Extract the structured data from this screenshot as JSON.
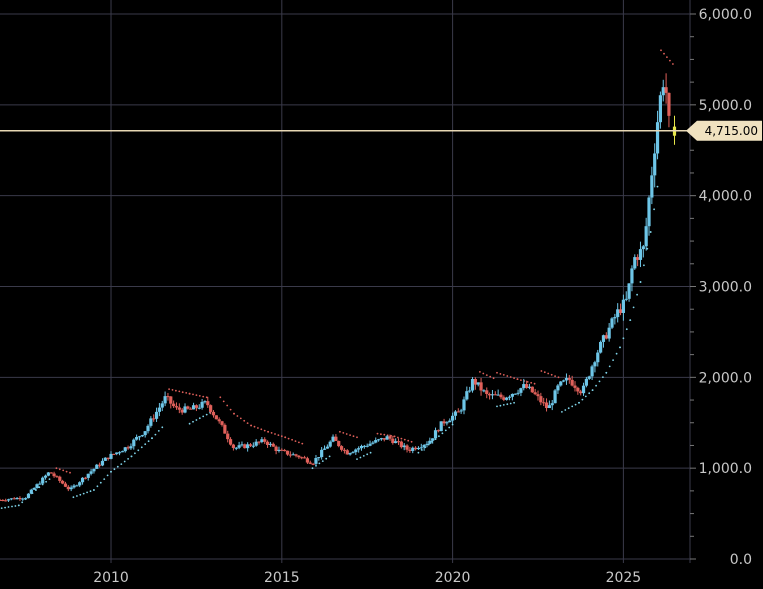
{
  "colors": {
    "background": "#000000",
    "grid": "#3a3a4a",
    "axis_text": "#c8c8c8",
    "up_candle": "#6ec6e8",
    "down_candle": "#e0605a",
    "stop_below": "#7fd3e8",
    "stop_above": "#e0605a",
    "price_line": "#e8d8b4",
    "price_tag_bg": "#f0e2c0",
    "price_tag_text": "#000000",
    "last_candle": "#e6e64a"
  },
  "chart_data": {
    "type": "candlestick",
    "title": "",
    "xlabel": "",
    "ylabel": "",
    "grid": true,
    "ylim": [
      0,
      6000
    ],
    "xlim": [
      2006.75,
      2026.95
    ],
    "x_ticks": [
      2010,
      2015,
      2020,
      2025
    ],
    "x_tick_labels": [
      "2010",
      "2015",
      "2020",
      "2025"
    ],
    "y_ticks": [
      0,
      1000,
      2000,
      3000,
      4000,
      5000,
      6000
    ],
    "y_tick_labels": [
      "0.0",
      "1,000.0",
      "2,000.0",
      "3,000.0",
      "4,000.0",
      "5,000.0",
      "6,000.0"
    ],
    "y_axis_side": "right",
    "current_price": 4715,
    "current_price_label": "4,715.00",
    "price_path": [
      [
        2006.75,
        650
      ],
      [
        2007.5,
        680
      ],
      [
        2008.2,
        960
      ],
      [
        2008.8,
        760
      ],
      [
        2009.3,
        930
      ],
      [
        2009.9,
        1120
      ],
      [
        2010.5,
        1240
      ],
      [
        2011.0,
        1420
      ],
      [
        2011.6,
        1780
      ],
      [
        2011.9,
        1650
      ],
      [
        2012.3,
        1640
      ],
      [
        2012.8,
        1720
      ],
      [
        2013.3,
        1420
      ],
      [
        2013.6,
        1220
      ],
      [
        2014.0,
        1250
      ],
      [
        2014.5,
        1300
      ],
      [
        2014.9,
        1190
      ],
      [
        2015.5,
        1130
      ],
      [
        2015.9,
        1060
      ],
      [
        2016.5,
        1320
      ],
      [
        2016.9,
        1170
      ],
      [
        2017.5,
        1260
      ],
      [
        2018.1,
        1340
      ],
      [
        2018.7,
        1200
      ],
      [
        2019.3,
        1290
      ],
      [
        2019.7,
        1500
      ],
      [
        2020.2,
        1620
      ],
      [
        2020.6,
        1970
      ],
      [
        2021.0,
        1800
      ],
      [
        2021.5,
        1780
      ],
      [
        2022.1,
        1900
      ],
      [
        2022.3,
        1850
      ],
      [
        2022.8,
        1650
      ],
      [
        2023.1,
        1900
      ],
      [
        2023.4,
        1980
      ],
      [
        2023.8,
        1840
      ],
      [
        2024.2,
        2250
      ],
      [
        2024.8,
        2700
      ],
      [
        2025.1,
        2850
      ],
      [
        2025.3,
        3300
      ],
      [
        2025.6,
        3420
      ],
      [
        2025.8,
        4150
      ],
      [
        2026.05,
        5000
      ],
      [
        2026.2,
        5350
      ],
      [
        2026.35,
        4715
      ]
    ],
    "stop_segments": [
      {
        "side": "below",
        "points": [
          [
            2006.8,
            560
          ],
          [
            2007.3,
            590
          ],
          [
            2007.8,
            760
          ],
          [
            2008.2,
            880
          ]
        ]
      },
      {
        "side": "above",
        "points": [
          [
            2008.4,
            1000
          ],
          [
            2008.8,
            950
          ]
        ]
      },
      {
        "side": "below",
        "points": [
          [
            2008.9,
            680
          ],
          [
            2009.5,
            760
          ],
          [
            2010.0,
            960
          ],
          [
            2010.6,
            1130
          ],
          [
            2011.2,
            1330
          ],
          [
            2011.5,
            1450
          ]
        ]
      },
      {
        "side": "above",
        "points": [
          [
            2011.7,
            1870
          ],
          [
            2012.3,
            1820
          ],
          [
            2012.8,
            1780
          ]
        ]
      },
      {
        "side": "below",
        "points": [
          [
            2012.3,
            1490
          ],
          [
            2012.9,
            1610
          ]
        ]
      },
      {
        "side": "above",
        "points": [
          [
            2013.2,
            1780
          ],
          [
            2013.6,
            1600
          ],
          [
            2014.1,
            1470
          ],
          [
            2014.6,
            1400
          ],
          [
            2015.1,
            1340
          ],
          [
            2015.6,
            1270
          ]
        ]
      },
      {
        "side": "below",
        "points": [
          [
            2015.9,
            1000
          ],
          [
            2016.4,
            1130
          ]
        ]
      },
      {
        "side": "above",
        "points": [
          [
            2016.7,
            1400
          ],
          [
            2017.2,
            1340
          ]
        ]
      },
      {
        "side": "below",
        "points": [
          [
            2017.2,
            1100
          ],
          [
            2017.6,
            1170
          ]
        ]
      },
      {
        "side": "above",
        "points": [
          [
            2017.8,
            1380
          ],
          [
            2018.3,
            1350
          ],
          [
            2018.8,
            1290
          ]
        ]
      },
      {
        "side": "below",
        "points": [
          [
            2019.0,
            1170
          ],
          [
            2019.5,
            1320
          ],
          [
            2020.0,
            1480
          ]
        ]
      },
      {
        "side": "above",
        "points": [
          [
            2020.8,
            2060
          ],
          [
            2021.2,
            1990
          ]
        ]
      },
      {
        "side": "below",
        "points": [
          [
            2021.3,
            1680
          ],
          [
            2021.8,
            1720
          ]
        ]
      },
      {
        "side": "above",
        "points": [
          [
            2021.3,
            2050
          ],
          [
            2021.9,
            1980
          ],
          [
            2022.4,
            1930
          ]
        ]
      },
      {
        "side": "above",
        "points": [
          [
            2022.6,
            2070
          ],
          [
            2023.1,
            2000
          ]
        ]
      },
      {
        "side": "below",
        "points": [
          [
            2023.2,
            1620
          ],
          [
            2023.7,
            1720
          ],
          [
            2024.1,
            1860
          ],
          [
            2024.5,
            2050
          ],
          [
            2024.9,
            2330
          ],
          [
            2025.2,
            2630
          ],
          [
            2025.5,
            3050
          ],
          [
            2025.8,
            3600
          ],
          [
            2026.0,
            4100
          ]
        ]
      },
      {
        "side": "above",
        "points": [
          [
            2026.1,
            5600
          ],
          [
            2026.45,
            5450
          ]
        ]
      }
    ]
  }
}
